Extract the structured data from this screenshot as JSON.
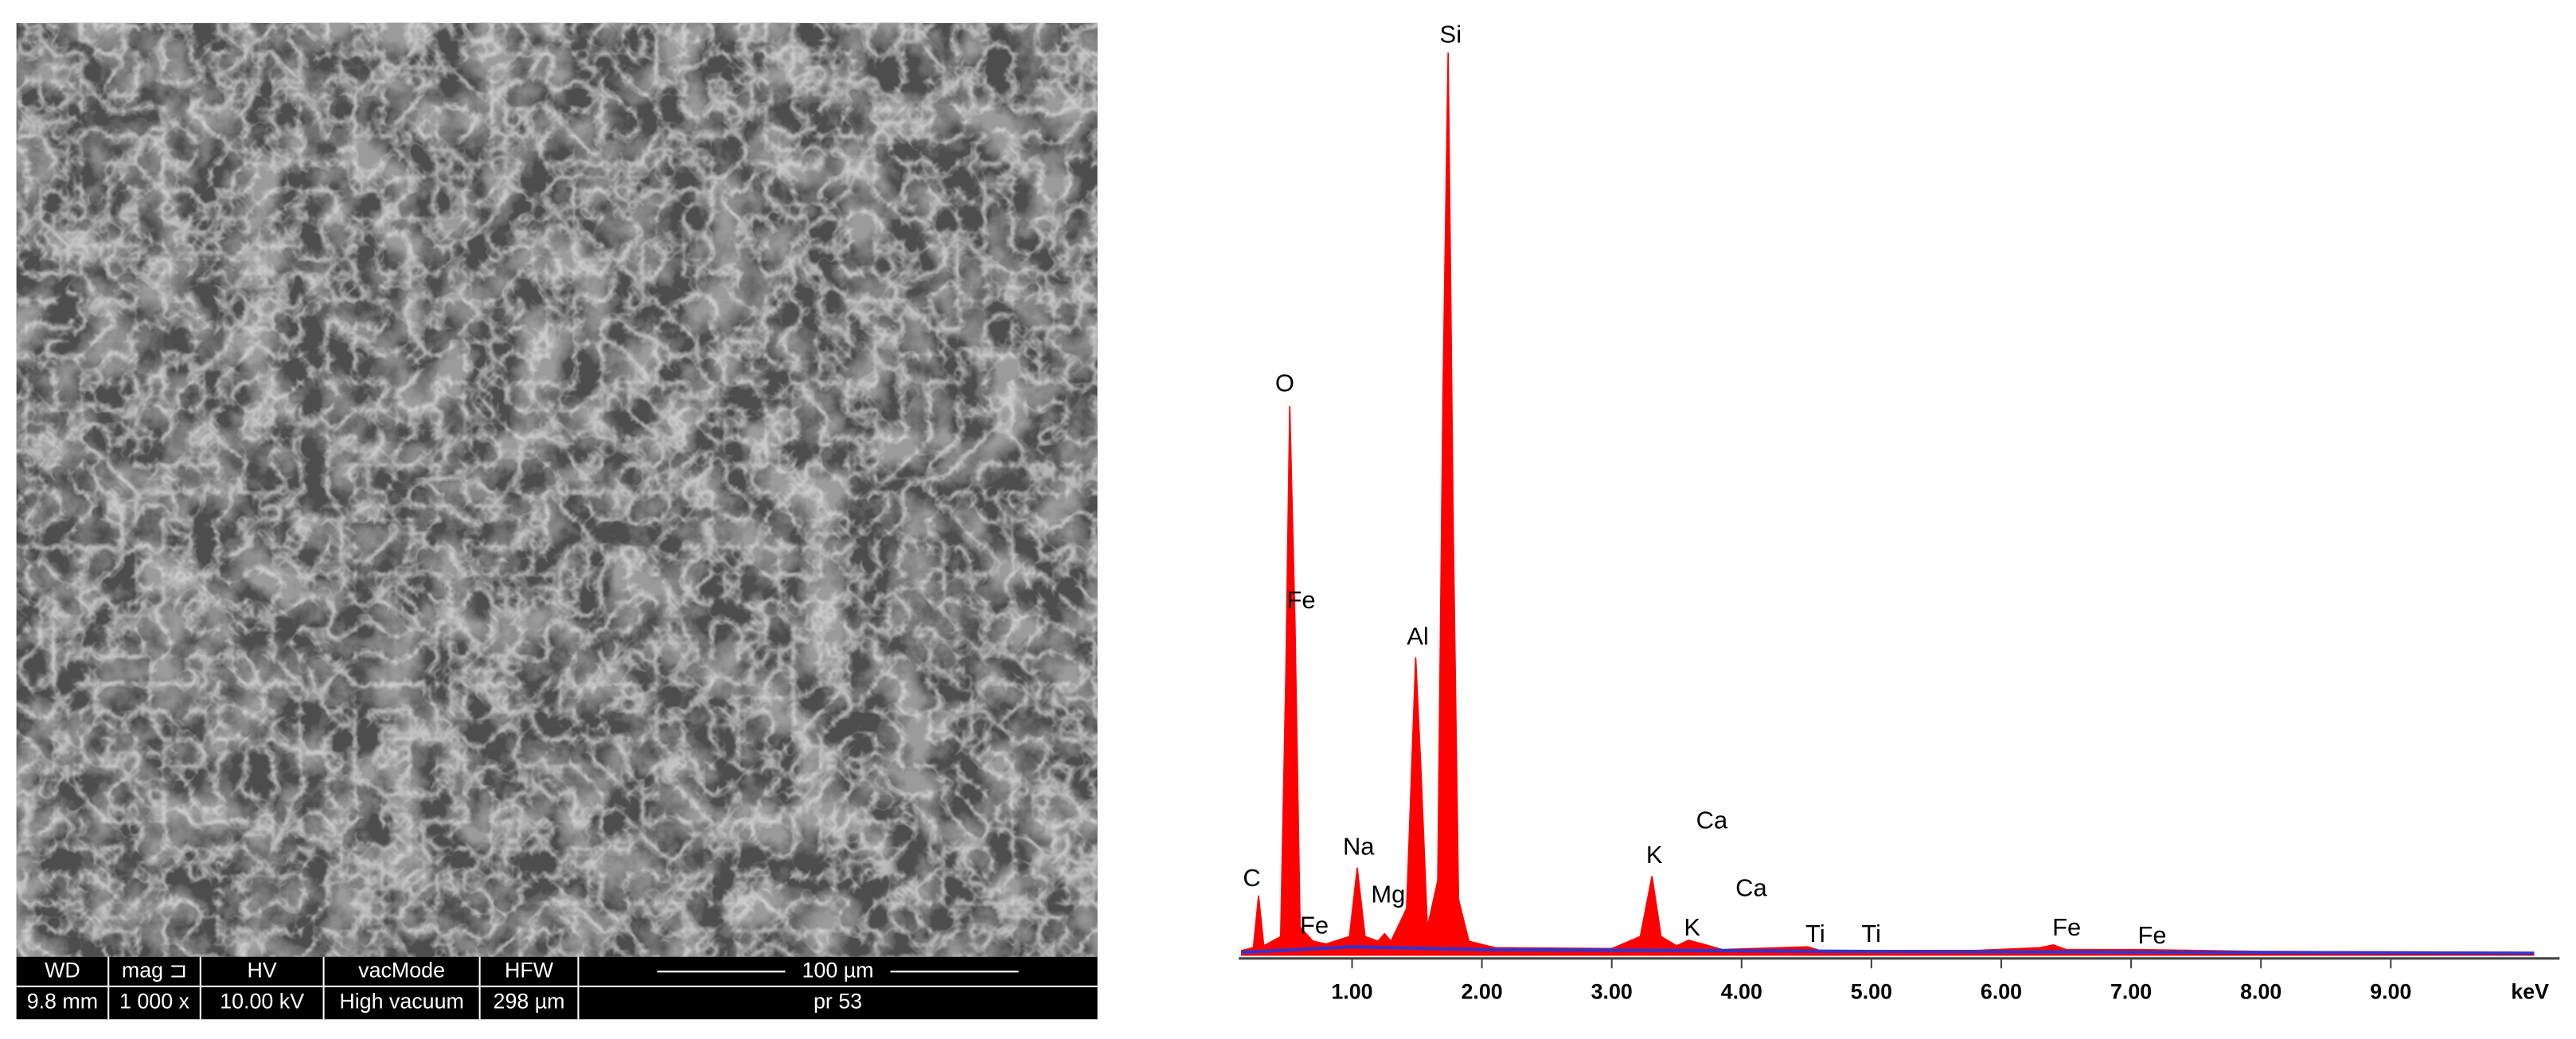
{
  "sem_panel": {
    "header": [
      "WD",
      "mag ⊐",
      "HV",
      "vacMode",
      "HFW"
    ],
    "values": [
      "9.8 mm",
      "1 000 x",
      "10.00 kV",
      "High vacuum",
      "298 µm"
    ],
    "scale_bar": "100 µm",
    "label": "pr 53"
  },
  "chart_data": {
    "type": "spectrum",
    "xlabel": "keV",
    "xlim": [
      0.127,
      10.3
    ],
    "ylim": [
      0,
      100
    ],
    "xticks": [
      {
        "value": 1,
        "label": "1.00"
      },
      {
        "value": 2,
        "label": "2.00"
      },
      {
        "value": 3,
        "label": "3.00"
      },
      {
        "value": 4,
        "label": "4.00"
      },
      {
        "value": 5,
        "label": "5.00"
      },
      {
        "value": 6,
        "label": "6.00"
      },
      {
        "value": 7,
        "label": "7.00"
      },
      {
        "value": 8,
        "label": "8.00"
      },
      {
        "value": 9,
        "label": "9.00"
      }
    ],
    "series": [
      {
        "color": "#ff0000",
        "x": [
          0.15,
          0.24,
          0.28,
          0.32,
          0.45,
          0.49,
          0.52,
          0.56,
          0.6,
          0.7,
          0.8,
          0.98,
          1.04,
          1.1,
          1.2,
          1.25,
          1.3,
          1.42,
          1.49,
          1.53,
          1.58,
          1.66,
          1.7,
          1.74,
          1.78,
          1.82,
          1.9,
          2.1,
          3.0,
          3.22,
          3.31,
          3.38,
          3.5,
          3.59,
          3.7,
          3.85,
          4.51,
          4.6,
          5.8,
          6.3,
          6.4,
          6.5,
          7.06,
          8.0,
          10.1
        ],
        "values": [
          0.5,
          0.8,
          6.4,
          1,
          2,
          30,
          59,
          36,
          3,
          1.5,
          1.2,
          2,
          9.4,
          2,
          1.5,
          2.3,
          1.5,
          5,
          32,
          20,
          3,
          8,
          60,
          97,
          45,
          6,
          1.5,
          0.8,
          0.7,
          2,
          8.5,
          2,
          1,
          1.6,
          1.2,
          0.6,
          0.9,
          0.5,
          0.5,
          0.8,
          1.1,
          0.6,
          0.6,
          0.4,
          0.3
        ]
      },
      {
        "color": "#3333cc",
        "x": [
          0.15,
          1.0,
          2.0,
          5.0,
          10.1
        ],
        "values": [
          0.3,
          0.9,
          0.6,
          0.4,
          0.2
        ]
      }
    ],
    "annotations": [
      "C",
      "Fe",
      "O",
      "Fe",
      "Na",
      "Mg",
      "Al",
      "Si",
      "K",
      "Ca",
      "K",
      "Ca",
      "Ti",
      "Ti",
      "Fe",
      "Fe"
    ]
  }
}
